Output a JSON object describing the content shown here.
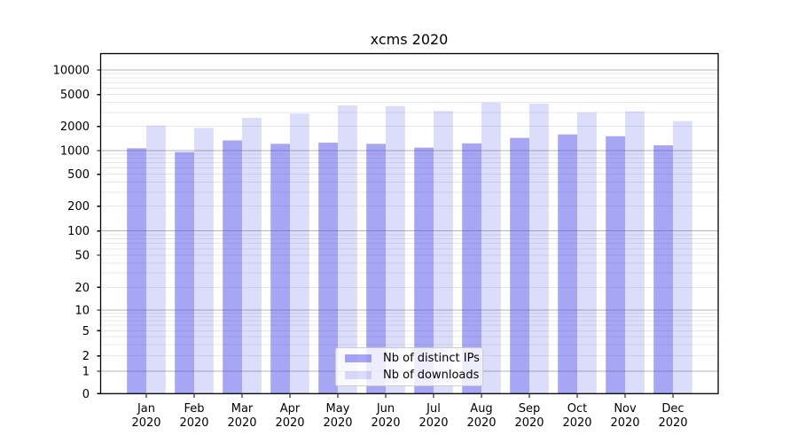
{
  "figure": {
    "background": "#ffffff"
  },
  "chart_data": {
    "type": "bar",
    "title": "xcms 2020",
    "y_scale": "symlog",
    "grid": true,
    "legend_position": "lower center",
    "categories": [
      "Jan",
      "Feb",
      "Mar",
      "Apr",
      "May",
      "Jun",
      "Jul",
      "Aug",
      "Sep",
      "Oct",
      "Nov",
      "Dec"
    ],
    "category_year": "2020",
    "y_ticks": [
      0,
      1,
      2,
      5,
      10,
      20,
      50,
      100,
      200,
      500,
      1000,
      2000,
      5000,
      10000
    ],
    "colors": {
      "bar_base": "#3c3ce8",
      "grid_major": "#b3b3b3",
      "grid_minor": "#e9e9e9",
      "axis": "#000000"
    },
    "series": [
      {
        "name": "Nb of distinct IPs",
        "color": "#3c3ce8",
        "alpha": 0.46,
        "values": [
          1070,
          960,
          1340,
          1215,
          1256,
          1215,
          1090,
          1230,
          1440,
          1590,
          1510,
          1165
        ]
      },
      {
        "name": "Nb of downloads",
        "color": "#3c3ce8",
        "alpha": 0.18,
        "values": [
          2050,
          1920,
          2560,
          2880,
          3660,
          3590,
          3110,
          3970,
          3850,
          2980,
          3080,
          2330
        ]
      }
    ]
  }
}
